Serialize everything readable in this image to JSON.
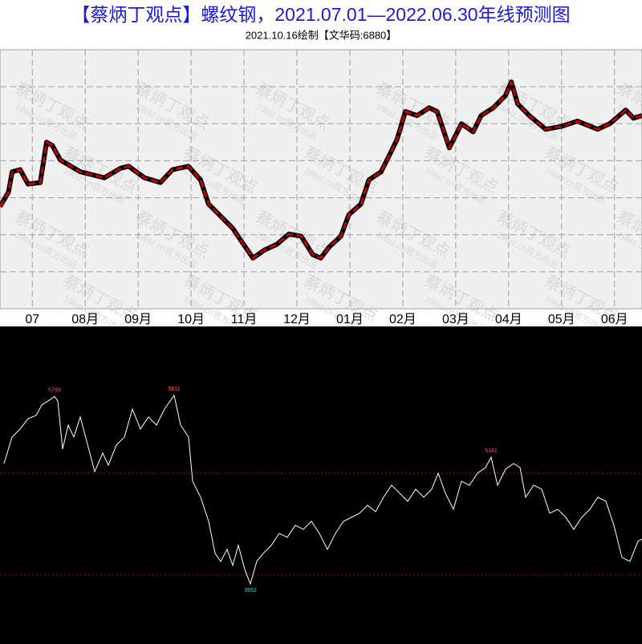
{
  "chart_data": [
    {
      "type": "line",
      "title": "【蔡炳丁观点】螺纹钢，2021.07.01—2022.06.30年线预测图",
      "subtitle": "2021.10.16绘制【文华码:6880】",
      "watermark": [
        "蔡炳丁观点",
        "19biz.cn官方出品"
      ],
      "color": "#c00000",
      "xlim": [
        -0.11,
        12.02
      ],
      "xticks": [
        {
          "value": 0,
          "label": "07"
        },
        {
          "value": 1,
          "label": "08月"
        },
        {
          "value": 2,
          "label": "09月"
        },
        {
          "value": 3,
          "label": "10月"
        },
        {
          "value": 4,
          "label": "11月"
        },
        {
          "value": 5,
          "label": "12月"
        },
        {
          "value": 6,
          "label": "01月"
        },
        {
          "value": 7,
          "label": "02月"
        },
        {
          "value": 8,
          "label": "03月"
        },
        {
          "value": 9,
          "label": "04月"
        },
        {
          "value": 10,
          "label": "05月"
        },
        {
          "value": 11,
          "label": "06月"
        }
      ],
      "ylim": [
        0,
        7
      ],
      "yticks": [
        0,
        1,
        2,
        3,
        4,
        5,
        6,
        7
      ],
      "grid": true,
      "x": [
        -0.11,
        0.05,
        0.12,
        0.27,
        0.42,
        0.65,
        0.77,
        0.88,
        1.03,
        1.41,
        1.86,
        2.17,
        2.32,
        2.62,
        2.92,
        3.15,
        3.45,
        3.68,
        3.83,
        4.06,
        4.29,
        4.44,
        4.67,
        4.89,
        5.12,
        5.35,
        5.58,
        5.8,
        5.95,
        6.11,
        6.33,
        6.48,
        6.71,
        6.86,
        7.09,
        7.24,
        7.39,
        7.55,
        7.77,
        8.0,
        8.15,
        8.38,
        8.61,
        8.83,
        8.98,
        9.21,
        9.44,
        9.55,
        9.67,
        9.89,
        10.2,
        10.5,
        10.8,
        11.18,
        11.41,
        11.71,
        11.86,
        12.02
      ],
      "values": [
        2.76,
        3.15,
        3.7,
        3.76,
        3.37,
        3.41,
        4.5,
        4.41,
        4.02,
        3.7,
        3.54,
        3.8,
        3.85,
        3.54,
        3.41,
        3.76,
        3.85,
        3.48,
        2.83,
        2.5,
        2.17,
        1.85,
        1.37,
        1.59,
        1.74,
        2.02,
        1.96,
        1.46,
        1.37,
        1.67,
        1.96,
        2.54,
        2.83,
        3.48,
        3.7,
        4.13,
        4.57,
        5.33,
        5.22,
        5.43,
        5.33,
        4.35,
        5.0,
        4.78,
        5.22,
        5.43,
        5.76,
        6.13,
        5.54,
        5.22,
        4.85,
        4.93,
        5.07,
        4.85,
        5.0,
        5.37,
        5.15,
        5.22
      ]
    },
    {
      "type": "line",
      "background": "#000000",
      "color": "#ffffff",
      "xlim": [
        0,
        800
      ],
      "ylim": [
        3280,
        6513
      ],
      "x": [
        5,
        15,
        25,
        35,
        45,
        52,
        60,
        68,
        72,
        78,
        85,
        92,
        100,
        108,
        118,
        128,
        135,
        145,
        155,
        165,
        175,
        185,
        195,
        205,
        217,
        225,
        235,
        240,
        250,
        260,
        268,
        275,
        283,
        290,
        297,
        305,
        312,
        320,
        328,
        338,
        348,
        358,
        368,
        378,
        388,
        398,
        408,
        418,
        428,
        438,
        448,
        458,
        468,
        478,
        488,
        498,
        508,
        518,
        528,
        538,
        546,
        555,
        565,
        575,
        585,
        595,
        605,
        612,
        620,
        630,
        640,
        648,
        655,
        665,
        675,
        685,
        695,
        705,
        715,
        725,
        735,
        745,
        755,
        765,
        775,
        785,
        795,
        800
      ],
      "values": [
        5117,
        5386,
        5468,
        5574,
        5607,
        5713,
        5754,
        5799,
        5754,
        5264,
        5509,
        5386,
        5591,
        5346,
        5035,
        5223,
        5101,
        5305,
        5386,
        5672,
        5468,
        5591,
        5509,
        5672,
        5811,
        5509,
        5386,
        4937,
        4774,
        4529,
        4202,
        4121,
        4243,
        4080,
        4284,
        4039,
        3892,
        4121,
        4202,
        4284,
        4406,
        4366,
        4488,
        4447,
        4529,
        4406,
        4243,
        4406,
        4529,
        4570,
        4611,
        4692,
        4627,
        4774,
        4896,
        4815,
        4733,
        4856,
        4774,
        4856,
        5019,
        4815,
        4651,
        4937,
        4896,
        5019,
        5076,
        5181,
        4896,
        5060,
        5117,
        5076,
        4774,
        4896,
        4856,
        4611,
        4651,
        4570,
        4447,
        4570,
        4651,
        4774,
        4733,
        4488,
        4161,
        4121,
        4325,
        4349
      ],
      "hlines": {
        "values": [
          5019,
          3982
        ],
        "color": "#c00000"
      },
      "annotations": [
        {
          "x": 68,
          "y": 5799,
          "label": "5799",
          "color": "#ff5050"
        },
        {
          "x": 217,
          "y": 5811,
          "label": "5811",
          "color": "#ff5050"
        },
        {
          "x": 612,
          "y": 5181,
          "label": "5181",
          "color": "#ff5050"
        },
        {
          "x": 312,
          "y": 3892,
          "label": "3892",
          "color": "#00e5ff"
        }
      ]
    }
  ]
}
